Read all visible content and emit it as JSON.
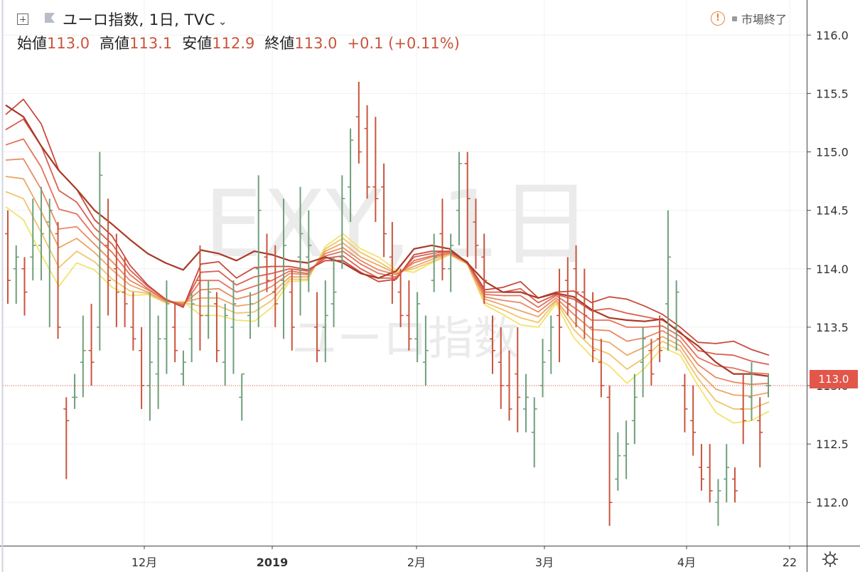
{
  "header": {
    "symbol_title": "ユーロ指数, 1日, TVC",
    "open_label": "始値",
    "open_value": "113.0",
    "high_label": "高値",
    "high_value": "113.1",
    "low_label": "安値",
    "low_value": "112.9",
    "close_label": "終値",
    "close_value": "113.0",
    "change": "+0.1 (+0.11%)"
  },
  "market_status": {
    "warning_mark": "!",
    "text": "市場終了"
  },
  "watermark": {
    "line1": "EXY, 1日",
    "line2": "ユーロ指数"
  },
  "price_tag": "113.0",
  "colors": {
    "up": "#6f9f7a",
    "down": "#c8553d",
    "last_line": "#e3564a",
    "ribbon": [
      "#f3e26d",
      "#f1c46b",
      "#eda668",
      "#e98a62",
      "#e4725c",
      "#dc5e52",
      "#c94a3b",
      "#a83a26"
    ]
  },
  "chart_data": {
    "type": "ohlc-bars",
    "yaxis": {
      "ticks": [
        112.0,
        112.5,
        113.0,
        113.5,
        114.0,
        114.5,
        115.0,
        115.5,
        116.0
      ],
      "ylim": [
        111.63,
        116.3
      ]
    },
    "xaxis": {
      "labels": [
        "12月",
        "2019",
        "2月",
        "3月",
        "4月",
        "22"
      ]
    },
    "bars": [
      [
        114.3,
        114.5,
        113.7,
        113.9
      ],
      [
        114.0,
        114.2,
        113.7,
        114.1
      ],
      [
        114.0,
        114.1,
        113.6,
        113.8
      ],
      [
        114.1,
        114.6,
        113.9,
        114.2
      ],
      [
        114.2,
        114.7,
        113.9,
        114.3
      ],
      [
        114.4,
        114.6,
        113.5,
        114.5
      ],
      [
        114.3,
        114.4,
        113.4,
        113.5
      ],
      [
        112.8,
        112.9,
        112.2,
        112.7
      ],
      [
        112.9,
        113.1,
        112.8,
        112.9
      ],
      [
        113.2,
        113.6,
        112.9,
        113.3
      ],
      [
        113.3,
        113.7,
        113.0,
        113.2
      ],
      [
        113.5,
        115.0,
        113.3,
        114.8
      ],
      [
        114.2,
        114.6,
        113.6,
        113.9
      ],
      [
        114.0,
        114.3,
        113.5,
        113.8
      ],
      [
        113.8,
        114.1,
        113.5,
        113.7
      ],
      [
        113.5,
        113.8,
        113.3,
        113.4
      ],
      [
        113.3,
        113.5,
        112.8,
        113.0
      ],
      [
        113.0,
        113.8,
        112.7,
        113.2
      ],
      [
        113.1,
        113.6,
        112.8,
        113.4
      ],
      [
        113.4,
        113.9,
        113.1,
        113.7
      ],
      [
        113.5,
        113.7,
        113.2,
        113.3
      ],
      [
        113.1,
        113.3,
        113.0,
        113.2
      ],
      [
        113.4,
        113.8,
        113.2,
        113.7
      ],
      [
        113.9,
        114.2,
        113.3,
        113.6
      ],
      [
        113.6,
        113.9,
        113.4,
        113.8
      ],
      [
        113.7,
        113.8,
        113.2,
        113.3
      ],
      [
        113.2,
        113.7,
        113.0,
        113.6
      ],
      [
        113.5,
        113.9,
        113.1,
        113.7
      ],
      [
        112.9,
        113.1,
        112.7,
        113.1
      ],
      [
        113.6,
        113.8,
        113.4,
        113.7
      ],
      [
        114.0,
        114.8,
        113.5,
        114.5
      ],
      [
        114.1,
        114.3,
        113.8,
        113.9
      ],
      [
        113.8,
        114.2,
        113.5,
        113.7
      ],
      [
        113.9,
        114.6,
        113.4,
        114.2
      ],
      [
        113.8,
        114.0,
        113.3,
        113.5
      ],
      [
        114.1,
        114.7,
        113.6,
        114.3
      ],
      [
        114.1,
        114.5,
        113.8,
        114.2
      ],
      [
        113.5,
        113.8,
        113.2,
        113.3
      ],
      [
        113.5,
        113.9,
        113.2,
        113.6
      ],
      [
        113.7,
        114.1,
        113.5,
        113.8
      ],
      [
        114.1,
        114.8,
        114.0,
        114.6
      ],
      [
        114.7,
        115.2,
        114.4,
        115.1
      ],
      [
        115.3,
        115.6,
        114.9,
        115.0
      ],
      [
        115.2,
        115.4,
        114.6,
        114.7
      ],
      [
        114.7,
        115.3,
        114.4,
        114.6
      ],
      [
        114.7,
        114.9,
        114.1,
        114.3
      ],
      [
        114.1,
        114.4,
        113.7,
        113.9
      ],
      [
        113.8,
        114.0,
        113.5,
        113.6
      ],
      [
        113.6,
        113.9,
        113.3,
        113.4
      ],
      [
        113.4,
        113.8,
        113.2,
        113.7
      ],
      [
        113.2,
        113.6,
        113.0,
        113.3
      ],
      [
        113.9,
        114.3,
        113.8,
        114.1
      ],
      [
        114.3,
        114.6,
        113.9,
        114.0
      ],
      [
        114.0,
        114.3,
        113.8,
        114.2
      ],
      [
        114.5,
        115.0,
        114.2,
        114.9
      ],
      [
        114.9,
        115.0,
        114.1,
        114.6
      ],
      [
        114.4,
        114.6,
        114.0,
        114.2
      ],
      [
        114.1,
        114.3,
        113.7,
        113.9
      ],
      [
        113.4,
        113.6,
        113.1,
        113.3
      ],
      [
        113.2,
        113.5,
        112.8,
        113.0
      ],
      [
        113.0,
        113.3,
        112.7,
        112.8
      ],
      [
        113.1,
        113.5,
        112.6,
        112.9
      ],
      [
        112.8,
        113.1,
        112.6,
        112.9
      ],
      [
        112.6,
        112.9,
        112.3,
        112.8
      ],
      [
        113.0,
        113.4,
        112.9,
        113.2
      ],
      [
        113.3,
        113.6,
        113.1,
        113.5
      ],
      [
        113.6,
        114.0,
        113.2,
        113.5
      ],
      [
        113.9,
        114.1,
        113.6,
        113.7
      ],
      [
        114.0,
        114.2,
        113.5,
        113.8
      ],
      [
        113.8,
        114.0,
        113.4,
        113.6
      ],
      [
        113.5,
        113.8,
        113.2,
        113.3
      ],
      [
        113.2,
        113.4,
        112.9,
        113.0
      ],
      [
        112.9,
        113.0,
        111.8,
        112.0
      ],
      [
        112.2,
        112.6,
        112.1,
        112.4
      ],
      [
        112.4,
        112.7,
        112.2,
        112.5
      ],
      [
        112.7,
        113.1,
        112.5,
        112.9
      ],
      [
        113.2,
        113.5,
        112.9,
        113.4
      ],
      [
        113.3,
        113.4,
        113.0,
        113.1
      ],
      [
        113.4,
        113.6,
        113.2,
        113.3
      ],
      [
        113.7,
        114.5,
        113.3,
        114.1
      ],
      [
        113.5,
        113.9,
        113.3,
        113.8
      ],
      [
        113.0,
        113.1,
        112.6,
        112.8
      ],
      [
        112.7,
        113.0,
        112.4,
        112.6
      ],
      [
        112.3,
        112.5,
        112.1,
        112.2
      ],
      [
        112.3,
        112.5,
        112.0,
        112.1
      ],
      [
        112.0,
        112.2,
        111.8,
        112.1
      ],
      [
        112.2,
        112.5,
        112.0,
        112.3
      ],
      [
        112.2,
        112.3,
        112.0,
        112.1
      ],
      [
        112.8,
        113.1,
        112.5,
        112.7
      ],
      [
        112.9,
        113.2,
        112.7,
        113.1
      ],
      [
        112.7,
        112.9,
        112.3,
        112.6
      ],
      [
        113.0,
        113.1,
        112.9,
        113.0
      ]
    ],
    "ribbon": [
      [
        114.53,
        114.42,
        114.12,
        113.85,
        114.05,
        113.99,
        113.84,
        113.77,
        113.78,
        113.71,
        113.72,
        113.6,
        113.6,
        113.56,
        113.55,
        113.67,
        113.89,
        113.9,
        114.19,
        114.3,
        114.17,
        114.1,
        113.99,
        113.97,
        114.05,
        114.12,
        114.04,
        113.69,
        113.61,
        113.52,
        113.5,
        113.7,
        113.41,
        113.25,
        113.17,
        113.02,
        113.15,
        113.33,
        113.26,
        113.0,
        112.77,
        112.68,
        112.7,
        112.78
      ],
      [
        114.66,
        114.6,
        114.31,
        114.01,
        114.15,
        114.06,
        113.91,
        113.81,
        113.79,
        113.71,
        113.71,
        113.68,
        113.68,
        113.62,
        113.63,
        113.73,
        113.91,
        113.91,
        114.17,
        114.26,
        114.14,
        114.06,
        113.97,
        114.0,
        114.06,
        114.12,
        114.04,
        113.71,
        113.65,
        113.58,
        113.54,
        113.72,
        113.48,
        113.33,
        113.27,
        113.14,
        113.24,
        113.38,
        113.3,
        113.06,
        112.87,
        112.8,
        112.8,
        112.86
      ],
      [
        114.79,
        114.77,
        114.49,
        114.18,
        114.26,
        114.14,
        113.99,
        113.86,
        113.8,
        113.72,
        113.71,
        113.75,
        113.75,
        113.68,
        113.7,
        113.79,
        113.93,
        113.93,
        114.15,
        114.22,
        114.1,
        114.03,
        113.96,
        114.02,
        114.08,
        114.13,
        114.05,
        113.74,
        113.69,
        113.64,
        113.59,
        113.73,
        113.54,
        113.4,
        113.37,
        113.26,
        113.33,
        113.42,
        113.34,
        113.12,
        112.97,
        112.92,
        112.91,
        112.94
      ],
      [
        114.93,
        114.94,
        114.68,
        114.34,
        114.36,
        114.21,
        114.06,
        113.9,
        113.82,
        113.73,
        113.7,
        113.82,
        113.83,
        113.74,
        113.78,
        113.85,
        113.96,
        113.95,
        114.13,
        114.18,
        114.07,
        113.99,
        113.95,
        114.05,
        114.1,
        114.13,
        114.05,
        113.76,
        113.73,
        113.71,
        113.63,
        113.75,
        113.61,
        113.48,
        113.47,
        113.38,
        113.41,
        113.47,
        113.38,
        113.18,
        113.07,
        113.03,
        113.01,
        113.02
      ],
      [
        115.06,
        115.11,
        114.87,
        114.51,
        114.47,
        114.28,
        114.14,
        113.95,
        113.83,
        113.73,
        113.69,
        113.9,
        113.9,
        113.8,
        113.85,
        113.9,
        113.98,
        113.96,
        114.11,
        114.15,
        114.04,
        113.96,
        113.93,
        114.07,
        114.11,
        114.14,
        114.05,
        113.78,
        113.77,
        113.77,
        113.67,
        113.77,
        113.67,
        113.56,
        113.56,
        113.5,
        113.5,
        113.51,
        113.42,
        113.24,
        113.17,
        113.15,
        113.11,
        113.1
      ],
      [
        115.19,
        115.28,
        115.05,
        114.67,
        114.57,
        114.35,
        114.21,
        113.99,
        113.85,
        113.74,
        113.68,
        113.97,
        113.98,
        113.86,
        113.93,
        113.96,
        114.0,
        113.98,
        114.09,
        114.11,
        114.0,
        113.92,
        113.92,
        114.1,
        114.13,
        114.15,
        114.06,
        113.8,
        113.8,
        113.83,
        113.71,
        113.78,
        113.74,
        113.64,
        113.66,
        113.62,
        113.59,
        113.56,
        113.46,
        113.3,
        113.27,
        113.26,
        113.21,
        113.18
      ],
      [
        115.32,
        115.45,
        115.24,
        114.84,
        114.68,
        114.42,
        114.28,
        114.03,
        113.86,
        113.74,
        113.67,
        114.04,
        114.06,
        113.92,
        114.01,
        114.02,
        114.02,
        113.99,
        114.07,
        114.07,
        113.97,
        113.89,
        113.91,
        114.12,
        114.15,
        114.15,
        114.06,
        113.82,
        113.84,
        113.89,
        113.75,
        113.8,
        113.81,
        113.71,
        113.76,
        113.74,
        113.68,
        113.61,
        113.5,
        113.37,
        113.36,
        113.38,
        113.31,
        113.26
      ],
      [
        115.4,
        115.3,
        115.05,
        114.84,
        114.68,
        114.5,
        114.38,
        114.25,
        114.13,
        114.05,
        113.99,
        114.16,
        114.13,
        114.07,
        114.15,
        114.12,
        114.07,
        114.05,
        114.1,
        114.05,
        113.96,
        113.92,
        113.98,
        114.17,
        114.2,
        114.17,
        114.05,
        113.89,
        113.8,
        113.8,
        113.75,
        113.79,
        113.76,
        113.65,
        113.58,
        113.56,
        113.55,
        113.57,
        113.45,
        113.34,
        113.2,
        113.1,
        113.1,
        113.08
      ]
    ]
  }
}
